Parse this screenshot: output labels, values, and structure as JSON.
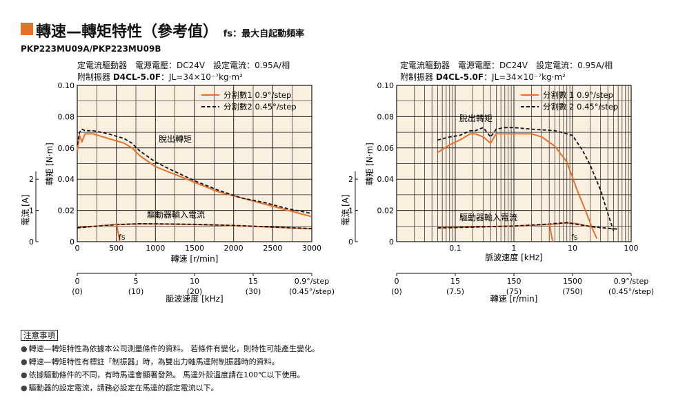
{
  "page": {
    "title": "轉速—轉矩特性（參考值）",
    "title_suffix": "fs：最大自起動頻率",
    "model": "PKP223MU09A/PKP223MU09B",
    "accent_color": "#e8702a",
    "plot_bg_color": "#fbefe0"
  },
  "notes": {
    "title": "注意事項",
    "items": [
      "轉速—轉矩特性為依據本公司測量條件的資料。 若條件有變化，則特性可能產生變化。",
      "轉速—轉矩特性有標註「制振器」時，為雙出力軸馬達附制振器時的資料。",
      "依據驅動條件的不同，有時馬達會顯著發熱。 馬達外殼溫度請在100℃以下使用。",
      "驅動器的設定電流，請務必設定在馬達的額定電流以下。"
    ]
  },
  "chart_data": [
    {
      "type": "line",
      "condition_line1": "定電流驅動器　電源電壓：DC24V　設定電流：0.95A/相",
      "condition_line2_prefix": "附制振器",
      "condition_line2_damper": "D4CL-5.0F",
      "condition_line2_inertia": "：JL=34×10⁻⁷kg·m²",
      "xlabel": "轉速 [r/min]",
      "ylabel": "轉矩 [N·m]",
      "ylabel2": "電流 [A]",
      "xscale": "linear",
      "xlim": [
        0,
        3000
      ],
      "ylim": [
        0,
        0.1
      ],
      "x_ticks": [
        "0",
        "500",
        "1000",
        "1500",
        "2000",
        "2500",
        "3000"
      ],
      "y_ticks": [
        "0",
        "0.02",
        "0.04",
        "0.06",
        "0.08",
        "0.10"
      ],
      "y2_ticks": [
        "0",
        "1",
        "2"
      ],
      "grid": true,
      "legend_position": "top-right",
      "secondary_axis_label": "脈波速度 [kHz]",
      "secondary_axis_ticks": [
        "0",
        "5",
        "10",
        "15",
        "0.9°/step"
      ],
      "secondary_axis_ticks2": [
        "(0)",
        "(10)",
        "(20)",
        "(30)",
        "(0.45°/step)"
      ],
      "annotations": [
        "脫出轉矩",
        "驅動器輸入電流",
        "fs"
      ],
      "fs_marker_x": 500,
      "series": [
        {
          "name": "分割數1 0.9°/step",
          "style": "solid",
          "color": "#e8702a",
          "x": [
            0,
            30,
            60,
            100,
            200,
            400,
            600,
            700,
            800,
            1000,
            1200,
            1500,
            1800,
            2100,
            2400,
            2700,
            3000
          ],
          "y": [
            0.058,
            0.068,
            0.064,
            0.069,
            0.069,
            0.066,
            0.063,
            0.06,
            0.055,
            0.048,
            0.044,
            0.038,
            0.032,
            0.028,
            0.024,
            0.02,
            0.016
          ]
        },
        {
          "name": "分割數2 0.45°/step",
          "style": "dashed",
          "color": "#111111",
          "x": [
            0,
            30,
            60,
            100,
            200,
            400,
            600,
            700,
            800,
            1000,
            1200,
            1500,
            1800,
            2100,
            2400,
            2700,
            3000
          ],
          "y": [
            0.062,
            0.07,
            0.072,
            0.071,
            0.071,
            0.069,
            0.066,
            0.063,
            0.058,
            0.051,
            0.046,
            0.039,
            0.033,
            0.028,
            0.025,
            0.021,
            0.018
          ]
        },
        {
          "name": "",
          "style": "solid",
          "color": "#e8702a",
          "x": [
            0,
            200,
            500,
            800,
            1000,
            1500,
            2000,
            2500,
            3000
          ],
          "y": [
            0.009,
            0.0098,
            0.011,
            0.0114,
            0.0113,
            0.011,
            0.0103,
            0.0093,
            0.0083
          ]
        },
        {
          "name": "",
          "style": "dashed",
          "color": "#111111",
          "x": [
            0,
            200,
            500,
            800,
            1000,
            1500,
            2000,
            2500,
            3000
          ],
          "y": [
            0.0088,
            0.0097,
            0.0109,
            0.0115,
            0.0114,
            0.0111,
            0.0104,
            0.0094,
            0.0084
          ]
        }
      ]
    },
    {
      "type": "line",
      "condition_line1": "定電流驅動器　電源電壓：DC24V　設定電流：0.95A/相",
      "condition_line2_prefix": "附制振器",
      "condition_line2_damper": "D4CL-5.0F",
      "condition_line2_inertia": "：JL=34×10⁻⁷kg·m²",
      "xlabel": "脈波速度 [kHz]",
      "ylabel": "轉矩 [N·m]",
      "ylabel2": "電流 [A]",
      "xscale": "log",
      "xlim": [
        0.01,
        100
      ],
      "ylim": [
        0,
        0.1
      ],
      "x_ticks": [
        "0.1",
        "1",
        "10",
        "100"
      ],
      "y_ticks": [
        "0",
        "0.02",
        "0.04",
        "0.06",
        "0.08",
        "0.10"
      ],
      "y2_ticks": [
        "0",
        "1",
        "2"
      ],
      "grid": true,
      "legend_position": "top-right",
      "secondary_axis_label": "轉速 [r/min]",
      "secondary_axis_ticks": [
        "0",
        "15",
        "150",
        "1500",
        "0.9°/step"
      ],
      "secondary_axis_ticks2": [
        "(0)",
        "(7.5)",
        "(75)",
        "(750)",
        "(0.45°/step)"
      ],
      "annotations": [
        "脫出轉矩",
        "驅動器輸入電流",
        "fs"
      ],
      "fs_marker_x": 4,
      "series": [
        {
          "name": "分割數 1  0.9°/step",
          "style": "solid",
          "color": "#e8702a",
          "x": [
            0.05,
            0.08,
            0.12,
            0.18,
            0.22,
            0.3,
            0.4,
            0.5,
            0.7,
            1,
            2,
            3,
            5,
            8,
            12,
            17,
            22,
            26
          ],
          "y": [
            0.057,
            0.062,
            0.065,
            0.069,
            0.069,
            0.067,
            0.063,
            0.069,
            0.069,
            0.069,
            0.069,
            0.067,
            0.061,
            0.051,
            0.033,
            0.019,
            0.008,
            0.002
          ]
        },
        {
          "name": "分割數 2  0.45°/step",
          "style": "dashed",
          "color": "#111111",
          "x": [
            0.05,
            0.08,
            0.12,
            0.18,
            0.22,
            0.3,
            0.4,
            0.5,
            0.7,
            1,
            2,
            5,
            10,
            15,
            20,
            30,
            40,
            50
          ],
          "y": [
            0.065,
            0.067,
            0.068,
            0.071,
            0.071,
            0.073,
            0.067,
            0.072,
            0.073,
            0.073,
            0.072,
            0.071,
            0.068,
            0.058,
            0.049,
            0.033,
            0.018,
            0.007
          ]
        },
        {
          "name": "",
          "style": "solid",
          "color": "#e8702a",
          "x": [
            0.05,
            0.1,
            0.3,
            1,
            2,
            4,
            8,
            12,
            18,
            25
          ],
          "y": [
            0.009,
            0.0092,
            0.0095,
            0.01,
            0.0105,
            0.011,
            0.012,
            0.0115,
            0.01,
            0.009
          ]
        },
        {
          "name": "",
          "style": "dashed",
          "color": "#111111",
          "x": [
            0.05,
            0.1,
            0.3,
            1,
            2,
            4,
            8,
            15,
            30,
            60
          ],
          "y": [
            0.0088,
            0.009,
            0.0095,
            0.01,
            0.0106,
            0.0113,
            0.0122,
            0.0105,
            0.009,
            0.008
          ]
        }
      ]
    }
  ]
}
